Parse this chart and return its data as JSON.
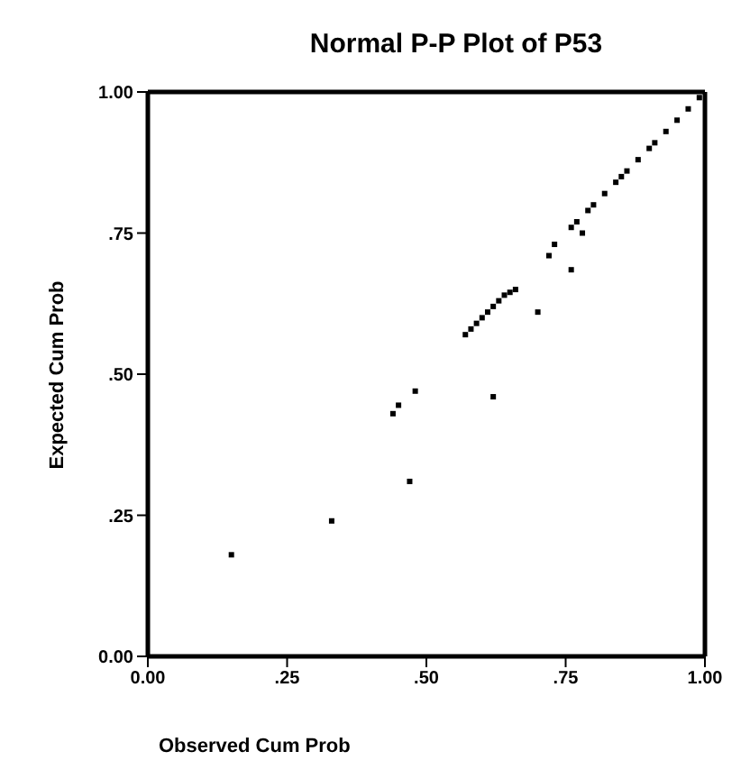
{
  "chart_data": {
    "type": "scatter",
    "title": "Normal P-P Plot of P53",
    "xlabel": "Observed Cum Prob",
    "ylabel": "Expected Cum Prob",
    "xlim": [
      0,
      1
    ],
    "ylim": [
      0,
      1
    ],
    "xticks": [
      {
        "value": 0,
        "label": "0.00"
      },
      {
        "value": 0.25,
        "label": ".25"
      },
      {
        "value": 0.5,
        "label": ".50"
      },
      {
        "value": 0.75,
        "label": ".75"
      },
      {
        "value": 1,
        "label": "1.00"
      }
    ],
    "yticks": [
      {
        "value": 0,
        "label": "0.00"
      },
      {
        "value": 0.25,
        "label": ".25"
      },
      {
        "value": 0.5,
        "label": ".50"
      },
      {
        "value": 0.75,
        "label": ".75"
      },
      {
        "value": 1,
        "label": "1.00"
      }
    ],
    "grid": false,
    "marker": "square",
    "series": [
      {
        "color": "#000000",
        "x": [
          0.15,
          0.33,
          0.47,
          0.44,
          0.45,
          0.48,
          0.62,
          0.57,
          0.58,
          0.59,
          0.6,
          0.61,
          0.62,
          0.63,
          0.64,
          0.65,
          0.66,
          0.7,
          0.72,
          0.73,
          0.76,
          0.76,
          0.78,
          0.77,
          0.79,
          0.8,
          0.82,
          0.84,
          0.85,
          0.86,
          0.88,
          0.9,
          0.91,
          0.93,
          0.95,
          0.97,
          0.99
        ],
        "values": [
          0.18,
          0.24,
          0.31,
          0.43,
          0.445,
          0.47,
          0.46,
          0.57,
          0.58,
          0.59,
          0.6,
          0.61,
          0.62,
          0.63,
          0.64,
          0.645,
          0.65,
          0.61,
          0.71,
          0.73,
          0.685,
          0.76,
          0.75,
          0.77,
          0.79,
          0.8,
          0.82,
          0.84,
          0.85,
          0.86,
          0.88,
          0.9,
          0.91,
          0.93,
          0.95,
          0.97,
          0.99
        ]
      }
    ]
  }
}
